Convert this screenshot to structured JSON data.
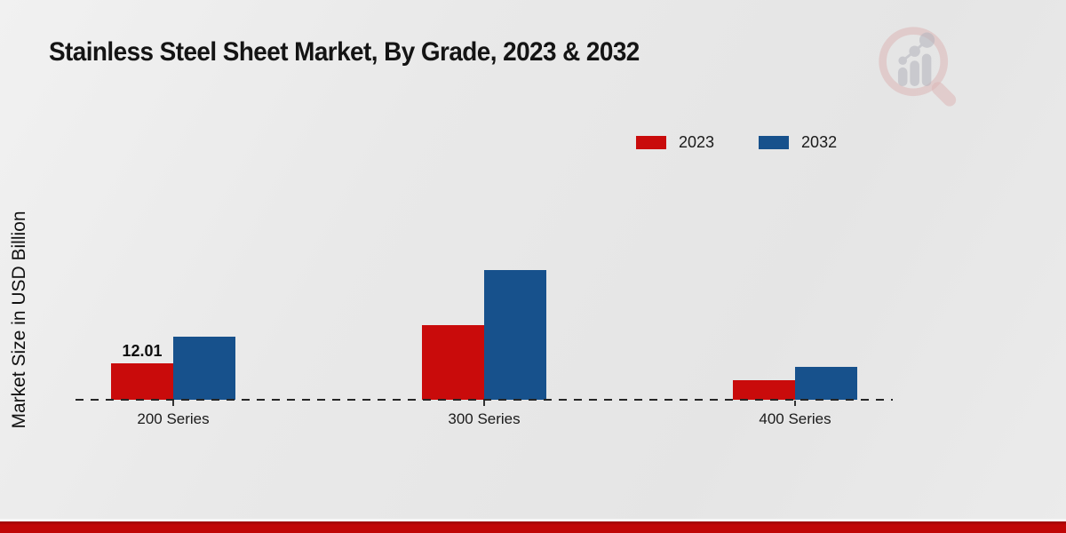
{
  "title": "Stainless Steel Sheet Market, By Grade, 2023 & 2032",
  "ylabel": "Market Size in USD Billion",
  "colors": {
    "series_2023": "#c90b0b",
    "series_2032": "#17518c",
    "footer_band": "#c00606",
    "footer_band_edge": "#9a0303",
    "baseline": "#262626",
    "background": "#e9e9e9"
  },
  "legend": {
    "position": "top-right",
    "entries": [
      {
        "label": "2023",
        "color": "#c90b0b"
      },
      {
        "label": "2032",
        "color": "#17518c"
      }
    ]
  },
  "watermark": {
    "name": "market-research-future-logo"
  },
  "chart_data": {
    "type": "bar",
    "title": "Stainless Steel Sheet Market, By Grade, 2023 & 2032",
    "xlabel": "",
    "ylabel": "Market Size in USD Billion",
    "categories": [
      "200 Series",
      "300 Series",
      "400 Series"
    ],
    "series": [
      {
        "name": "2023",
        "color": "#c90b0b",
        "values": [
          12.01,
          24.6,
          6.4
        ],
        "value_labels": [
          "12.01",
          "",
          ""
        ]
      },
      {
        "name": "2032",
        "color": "#17518c",
        "values": [
          20.8,
          42.8,
          10.8
        ],
        "value_labels": [
          "",
          "",
          ""
        ]
      }
    ],
    "ylim": [
      0,
      50
    ],
    "grid": false,
    "axis_style": "dashed-baseline-only",
    "legend_position": "top-right"
  }
}
